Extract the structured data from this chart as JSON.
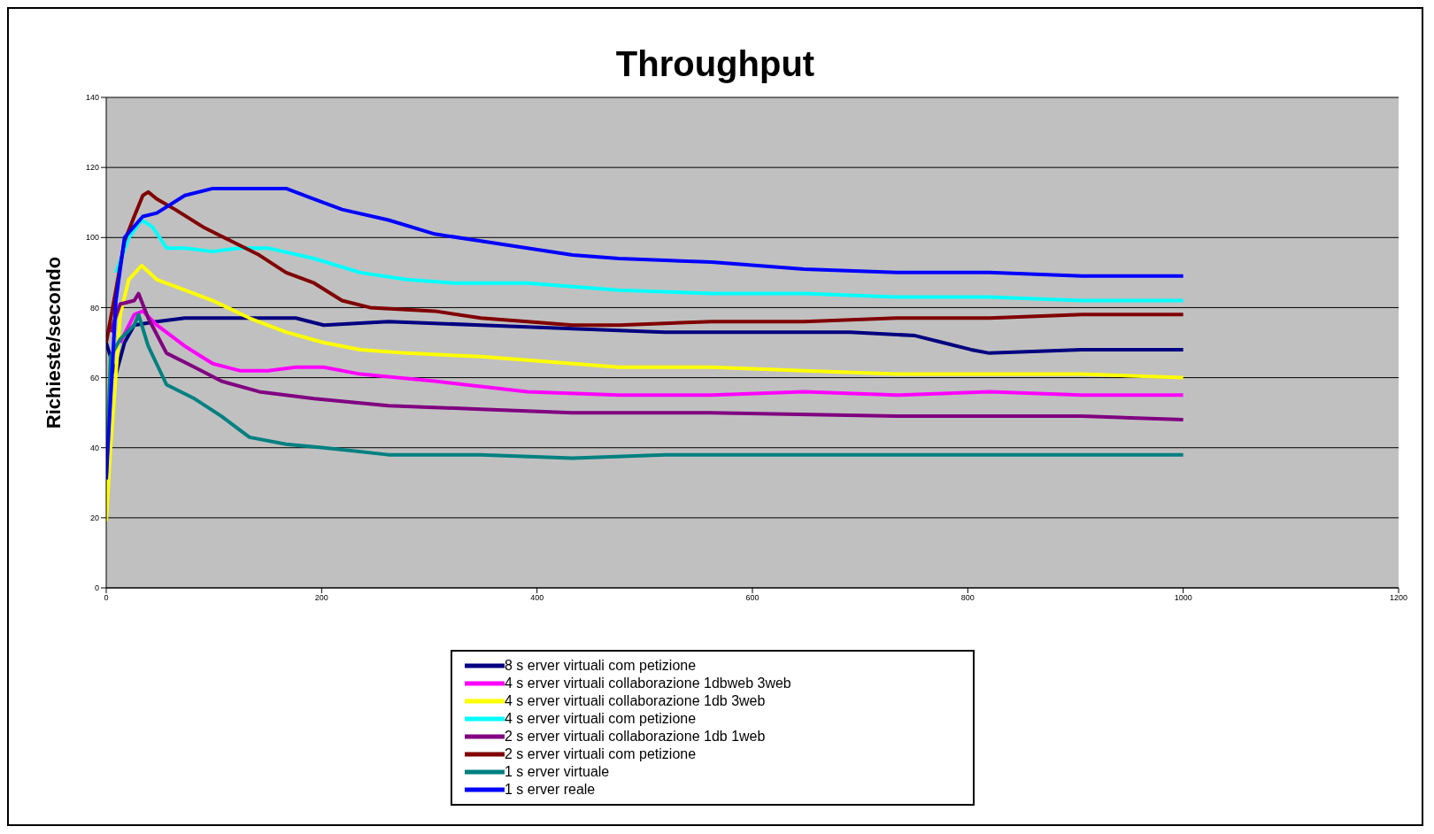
{
  "chart_data": {
    "type": "line",
    "title": "Throughput",
    "ylabel": "Richieste/secondo",
    "xlim": [
      0,
      1200
    ],
    "xticks": [
      0,
      200,
      400,
      600,
      800,
      1000,
      1200
    ],
    "ylim": [
      0,
      140
    ],
    "yticks": [
      0,
      20,
      40,
      60,
      80,
      100,
      120,
      140
    ],
    "grid": "y",
    "legend": "bottom",
    "marker": "none",
    "line_style": "solid",
    "series": [
      {
        "name": "8 s erver virtuali com petizione",
        "color": "#000080",
        "x": [
          0,
          9,
          17,
          26,
          47,
          73,
          116,
          176,
          202,
          262,
          348,
          433,
          519,
          605,
          691,
          751,
          777,
          803,
          820,
          906,
          1000
        ],
        "values": [
          70,
          61,
          70,
          75,
          76,
          77,
          77,
          77,
          75,
          76,
          75,
          74,
          73,
          73,
          73,
          72,
          70,
          68,
          67,
          68,
          68
        ]
      },
      {
        "name": "4 s erver virtuali collaborazione 1dbweb 3web",
        "color": "#ff00ff",
        "x": [
          13,
          26,
          34,
          47,
          73,
          99,
          124,
          150,
          176,
          202,
          236,
          305,
          391,
          476,
          562,
          648,
          734,
          820,
          906,
          1000
        ],
        "values": [
          70,
          78,
          79,
          75,
          69,
          64,
          62,
          62,
          63,
          63,
          61,
          59,
          56,
          55,
          55,
          56,
          55,
          56,
          55,
          55
        ]
      },
      {
        "name": "4 s erver virtuali collaborazione 1db 3web",
        "color": "#ffff00",
        "x": [
          0,
          4,
          13,
          21,
          33,
          47,
          73,
          99,
          133,
          167,
          202,
          236,
          279,
          348,
          391,
          476,
          562,
          648,
          734,
          820,
          906,
          1000
        ],
        "values": [
          19,
          40,
          78,
          88,
          92,
          88,
          85,
          82,
          77,
          73,
          70,
          68,
          67,
          66,
          65,
          63,
          63,
          62,
          61,
          61,
          61,
          60
        ]
      },
      {
        "name": "4 s erver virtuali com petizione",
        "color": "#00ffff",
        "x": [
          9,
          21,
          33,
          43,
          56,
          73,
          99,
          124,
          150,
          193,
          236,
          279,
          322,
          391,
          476,
          562,
          648,
          734,
          820,
          906,
          1000
        ],
        "values": [
          90,
          100,
          105,
          103,
          97,
          97,
          96,
          97,
          97,
          94,
          90,
          88,
          87,
          87,
          85,
          84,
          84,
          83,
          83,
          82,
          82
        ]
      },
      {
        "name": "2 s erver virtuali collaborazione 1db 1web",
        "color": "#800080",
        "x": [
          4,
          13,
          26,
          30,
          39,
          56,
          82,
          107,
          142,
          193,
          262,
          348,
          433,
          562,
          734,
          906,
          1000
        ],
        "values": [
          73,
          81,
          82,
          84,
          77,
          67,
          63,
          59,
          56,
          54,
          52,
          51,
          50,
          50,
          49,
          49,
          48
        ]
      },
      {
        "name": "2 s erver virtuali com petizione",
        "color": "#800000",
        "x": [
          0,
          9,
          17,
          26,
          34,
          39,
          47,
          64,
          90,
          116,
          142,
          167,
          193,
          219,
          245,
          305,
          348,
          391,
          433,
          476,
          562,
          648,
          734,
          820,
          906,
          1000
        ],
        "values": [
          70,
          85,
          99,
          106,
          112,
          113,
          111,
          108,
          103,
          99,
          95,
          90,
          87,
          82,
          80,
          79,
          77,
          76,
          75,
          75,
          76,
          76,
          77,
          77,
          78,
          78
        ]
      },
      {
        "name": "1 s erver virtuale",
        "color": "#008080",
        "x": [
          0,
          4,
          13,
          26,
          30,
          39,
          56,
          82,
          107,
          133,
          167,
          202,
          262,
          348,
          433,
          519,
          605,
          734,
          1000
        ],
        "values": [
          31,
          66,
          71,
          75,
          78,
          69,
          58,
          54,
          49,
          43,
          41,
          40,
          38,
          38,
          37,
          38,
          38,
          38,
          38
        ]
      },
      {
        "name": "1 s erver reale",
        "color": "#0000ff",
        "x": [
          0,
          9,
          17,
          34,
          47,
          73,
          99,
          133,
          167,
          193,
          219,
          262,
          305,
          348,
          391,
          433,
          476,
          562,
          605,
          648,
          734,
          820,
          906,
          1000
        ],
        "values": [
          31,
          82,
          100,
          106,
          107,
          112,
          114,
          114,
          114,
          111,
          108,
          105,
          101,
          99,
          97,
          95,
          94,
          93,
          92,
          91,
          90,
          90,
          89,
          89
        ]
      }
    ]
  }
}
